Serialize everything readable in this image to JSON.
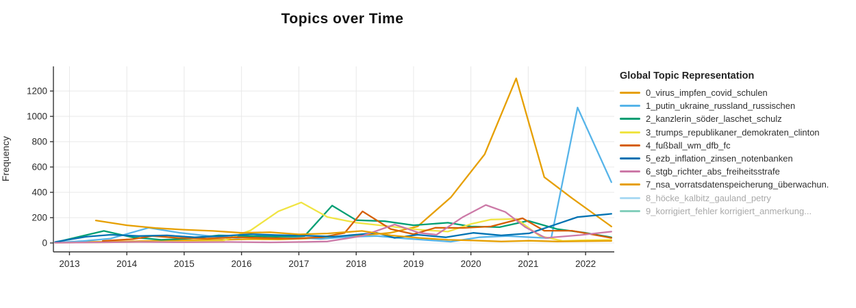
{
  "title": "Topics over Time",
  "legend": {
    "title": "Global Topic Representation"
  },
  "axes": {
    "y_label": "Frequency",
    "x_tick_labels": [
      "2013",
      "2014",
      "2015",
      "2016",
      "2017",
      "2018",
      "2019",
      "2020",
      "2021",
      "2022"
    ],
    "x_tick_years": [
      2013,
      2014,
      2015,
      2016,
      2017,
      2018,
      2019,
      2020,
      2021,
      2022
    ],
    "y_tick_labels": [
      "0",
      "200",
      "400",
      "600",
      "800",
      "1000",
      "1200"
    ],
    "y_tick_values": [
      0,
      200,
      400,
      600,
      800,
      1000,
      1200
    ]
  },
  "colors": {
    "axis_line": "#333333",
    "tick_text": "#2b2b2b",
    "grid": "#e8e8e8",
    "title_text": "#111111",
    "legend_muted_text": "#a9a9a9",
    "background": "#ffffff"
  },
  "chart_data": {
    "type": "line",
    "title": "Topics over Time",
    "xlabel": "",
    "ylabel": "Frequency",
    "xlim": [
      2012.72,
      2022.5
    ],
    "ylim": [
      0,
      1300
    ],
    "grid": true,
    "legend_position": "right",
    "legend_title": "Global Topic Representation",
    "series": [
      {
        "name": "0_virus_impfen_covid_schulen",
        "color": "#E69F00",
        "visible": true,
        "points": [
          [
            2012.75,
            5
          ],
          [
            2013.24,
            8
          ],
          [
            2013.72,
            10
          ],
          [
            2014.21,
            14
          ],
          [
            2014.7,
            18
          ],
          [
            2015.18,
            22
          ],
          [
            2015.67,
            25
          ],
          [
            2016.16,
            30
          ],
          [
            2016.64,
            28
          ],
          [
            2017.13,
            35
          ],
          [
            2017.61,
            45
          ],
          [
            2018.1,
            60
          ],
          [
            2018.59,
            80
          ],
          [
            2019.07,
            130
          ],
          [
            2019.65,
            360
          ],
          [
            2020.24,
            700
          ],
          [
            2020.79,
            1300
          ],
          [
            2021.28,
            520
          ],
          [
            2021.76,
            355
          ],
          [
            2022.45,
            130
          ]
        ]
      },
      {
        "name": "1_putin_ukraine_russland_russischen",
        "color": "#56B4E9",
        "visible": true,
        "points": [
          [
            2012.75,
            3
          ],
          [
            2013.24,
            15
          ],
          [
            2013.72,
            35
          ],
          [
            2014.38,
            120
          ],
          [
            2014.93,
            80
          ],
          [
            2015.43,
            55
          ],
          [
            2015.92,
            40
          ],
          [
            2016.4,
            62
          ],
          [
            2016.89,
            45
          ],
          [
            2017.38,
            32
          ],
          [
            2017.87,
            48
          ],
          [
            2018.36,
            55
          ],
          [
            2018.85,
            35
          ],
          [
            2019.34,
            20
          ],
          [
            2019.65,
            10
          ],
          [
            2020.14,
            45
          ],
          [
            2020.63,
            55
          ],
          [
            2021.05,
            45
          ],
          [
            2021.4,
            38
          ],
          [
            2021.86,
            1070
          ],
          [
            2022.45,
            480
          ]
        ]
      },
      {
        "name": "2_kanzlerin_söder_laschet_schulz",
        "color": "#009E73",
        "visible": true,
        "points": [
          [
            2012.75,
            5
          ],
          [
            2013.6,
            95
          ],
          [
            2014.1,
            45
          ],
          [
            2014.6,
            25
          ],
          [
            2015.1,
            35
          ],
          [
            2015.6,
            60
          ],
          [
            2016.1,
            55
          ],
          [
            2016.6,
            50
          ],
          [
            2017.1,
            55
          ],
          [
            2017.58,
            295
          ],
          [
            2018.0,
            180
          ],
          [
            2018.5,
            172
          ],
          [
            2019.0,
            140
          ],
          [
            2019.6,
            160
          ],
          [
            2020.0,
            130
          ],
          [
            2020.5,
            125
          ],
          [
            2021.0,
            175
          ],
          [
            2021.5,
            110
          ],
          [
            2022.0,
            80
          ],
          [
            2022.45,
            45
          ]
        ]
      },
      {
        "name": "3_trumps_republikaner_demokraten_clinton",
        "color": "#F0E442",
        "visible": true,
        "points": [
          [
            2012.75,
            2
          ],
          [
            2013.5,
            5
          ],
          [
            2014.2,
            8
          ],
          [
            2014.9,
            10
          ],
          [
            2015.67,
            16
          ],
          [
            2016.16,
            100
          ],
          [
            2016.64,
            250
          ],
          [
            2017.04,
            320
          ],
          [
            2017.5,
            205
          ],
          [
            2018.0,
            160
          ],
          [
            2018.6,
            130
          ],
          [
            2019.1,
            105
          ],
          [
            2019.6,
            90
          ],
          [
            2020.0,
            150
          ],
          [
            2020.35,
            185
          ],
          [
            2020.8,
            190
          ],
          [
            2021.2,
            55
          ],
          [
            2021.6,
            16
          ],
          [
            2022.0,
            22
          ],
          [
            2022.45,
            25
          ]
        ]
      },
      {
        "name": "4_fußball_wm_dfb_fc",
        "color": "#D55E00",
        "visible": true,
        "points": [
          [
            2013.58,
            16
          ],
          [
            2014.1,
            30
          ],
          [
            2014.45,
            55
          ],
          [
            2014.9,
            40
          ],
          [
            2015.4,
            35
          ],
          [
            2015.9,
            45
          ],
          [
            2016.4,
            40
          ],
          [
            2016.9,
            35
          ],
          [
            2017.4,
            45
          ],
          [
            2017.8,
            80
          ],
          [
            2018.11,
            250
          ],
          [
            2018.6,
            110
          ],
          [
            2019.0,
            70
          ],
          [
            2019.38,
            120
          ],
          [
            2019.86,
            119
          ],
          [
            2020.35,
            130
          ],
          [
            2020.9,
            195
          ],
          [
            2021.28,
            97
          ],
          [
            2021.76,
            97
          ],
          [
            2022.45,
            40
          ]
        ]
      },
      {
        "name": "5_ezb_inflation_zinsen_notenbanken",
        "color": "#0072B2",
        "visible": true,
        "points": [
          [
            2012.75,
            8
          ],
          [
            2013.3,
            50
          ],
          [
            2013.72,
            65
          ],
          [
            2014.21,
            55
          ],
          [
            2014.7,
            60
          ],
          [
            2015.18,
            45
          ],
          [
            2015.67,
            55
          ],
          [
            2016.16,
            70
          ],
          [
            2016.64,
            62
          ],
          [
            2017.13,
            58
          ],
          [
            2017.61,
            50
          ],
          [
            2018.1,
            70
          ],
          [
            2018.36,
            80
          ],
          [
            2018.67,
            40
          ],
          [
            2019.07,
            65
          ],
          [
            2019.56,
            45
          ],
          [
            2020.04,
            80
          ],
          [
            2020.53,
            60
          ],
          [
            2021.02,
            76
          ],
          [
            2021.5,
            150
          ],
          [
            2021.86,
            205
          ],
          [
            2022.45,
            230
          ]
        ]
      },
      {
        "name": "6_stgb_richter_abs_freiheitsstrafe",
        "color": "#CC79A7",
        "visible": true,
        "points": [
          [
            2012.75,
            2
          ],
          [
            2013.5,
            5
          ],
          [
            2014.2,
            8
          ],
          [
            2015.0,
            6
          ],
          [
            2015.8,
            8
          ],
          [
            2016.5,
            5
          ],
          [
            2017.04,
            8
          ],
          [
            2017.5,
            12
          ],
          [
            2018.1,
            55
          ],
          [
            2018.67,
            146
          ],
          [
            2019.1,
            80
          ],
          [
            2019.4,
            65
          ],
          [
            2019.86,
            205
          ],
          [
            2020.26,
            300
          ],
          [
            2020.6,
            245
          ],
          [
            2020.95,
            125
          ],
          [
            2021.3,
            40
          ],
          [
            2021.9,
            62
          ],
          [
            2022.45,
            90
          ]
        ]
      },
      {
        "name": "7_nsa_vorratsdatenspeicherung_überwachun.",
        "color": "#E69F00",
        "visible": true,
        "points": [
          [
            2013.46,
            178
          ],
          [
            2014.0,
            140
          ],
          [
            2014.5,
            118
          ],
          [
            2015.0,
            105
          ],
          [
            2015.5,
            95
          ],
          [
            2016.0,
            80
          ],
          [
            2016.5,
            85
          ],
          [
            2017.0,
            68
          ],
          [
            2017.5,
            75
          ],
          [
            2018.1,
            95
          ],
          [
            2018.6,
            60
          ],
          [
            2019.1,
            40
          ],
          [
            2019.6,
            25
          ],
          [
            2020.04,
            20
          ],
          [
            2020.53,
            12
          ],
          [
            2021.02,
            18
          ],
          [
            2021.5,
            12
          ],
          [
            2022.0,
            14
          ],
          [
            2022.45,
            16
          ]
        ]
      },
      {
        "name": "8_höcke_kalbitz_gauland_petry",
        "color": "#56B4E9",
        "muted_color": "#abdaf3",
        "visible": false,
        "points": []
      },
      {
        "name": "9_korrigiert_fehler korrigiert_anmerkung...",
        "color": "#009E73",
        "muted_color": "#84cfbc",
        "visible": false,
        "points": []
      }
    ]
  }
}
